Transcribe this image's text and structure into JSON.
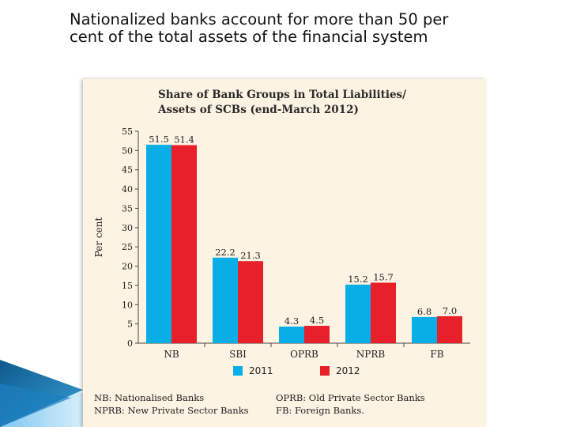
{
  "slide": {
    "title_lines": [
      "Nationalized banks account for more than 50 per",
      "cent of the total assets of the financial system"
    ]
  },
  "chart_data": {
    "type": "bar",
    "title_lines": [
      "Share of Bank Groups in Total Liabilities/",
      "Assets of SCBs (end-March 2012)"
    ],
    "ylabel": "Per cent",
    "xlabel": "",
    "ylim": [
      0,
      55
    ],
    "yticks": [
      0,
      5,
      10,
      15,
      20,
      25,
      30,
      35,
      40,
      45,
      50,
      55
    ],
    "categories": [
      "NB",
      "SBI",
      "OPRB",
      "NPRB",
      "FB"
    ],
    "series": [
      {
        "name": "2011",
        "color": "#0aaee6",
        "values": [
          51.5,
          22.2,
          4.3,
          15.2,
          6.8
        ],
        "labels": [
          "51.5",
          "22.2",
          "4.3",
          "15.2",
          "6.8"
        ]
      },
      {
        "name": "2012",
        "color": "#e8202a",
        "values": [
          51.4,
          21.3,
          4.5,
          15.7,
          7.0
        ],
        "labels": [
          "51.4",
          "21.3",
          "4.5",
          "15.7",
          "7.0"
        ]
      }
    ],
    "grid": false,
    "legend_position": "bottom"
  },
  "notes": {
    "nb": "NB: Nationalised Banks",
    "oprb": "OPRB: Old Private Sector Banks",
    "nprb": "NPRB: New Private Sector Banks",
    "fb": "FB: Foreign Banks."
  }
}
